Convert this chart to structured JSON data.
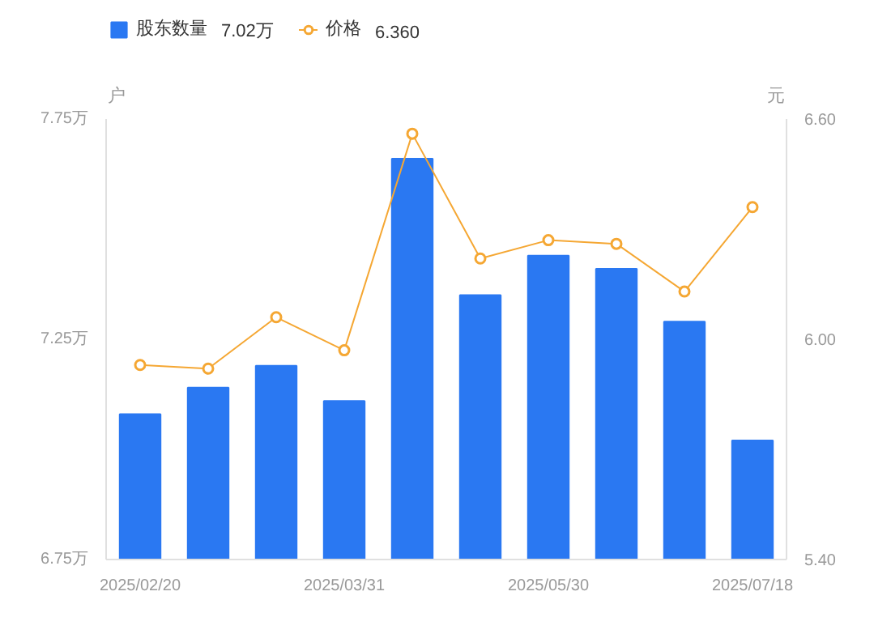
{
  "chart_data": {
    "type": "bar",
    "ylabel": "户",
    "y2label": "元",
    "categories": [
      "2025/02/20",
      null,
      null,
      "2025/03/31",
      null,
      null,
      "2025/05/30",
      null,
      null,
      "2025/07/18"
    ],
    "series": [
      {
        "name": "股东数量",
        "color": "#2a78f2",
        "values": [
          7.08,
          7.14,
          7.19,
          7.11,
          7.66,
          7.35,
          7.44,
          7.41,
          7.29,
          7.02
        ]
      },
      {
        "name": "价格",
        "type": "line",
        "axis": "y2",
        "color": "#f5a733",
        "marker": "circle",
        "values": [
          5.93,
          5.92,
          6.06,
          5.97,
          6.56,
          6.22,
          6.27,
          6.26,
          6.13,
          6.36
        ]
      }
    ],
    "annotations": [
      "7.02万",
      "6.360"
    ],
    "ylim": [
      6.75,
      7.75
    ],
    "yticks": [
      {
        "value": 6.75,
        "label": "6.75万"
      },
      {
        "value": 7.25,
        "label": "7.25万"
      },
      {
        "value": 7.75,
        "label": "7.75万"
      }
    ],
    "y2lim": [
      5.4,
      6.6
    ],
    "y2ticks": [
      {
        "value": 5.4,
        "label": "5.40"
      },
      {
        "value": 6.0,
        "label": "6.00"
      },
      {
        "value": 6.6,
        "label": "6.60"
      }
    ],
    "grid": false,
    "legend": "top left"
  }
}
